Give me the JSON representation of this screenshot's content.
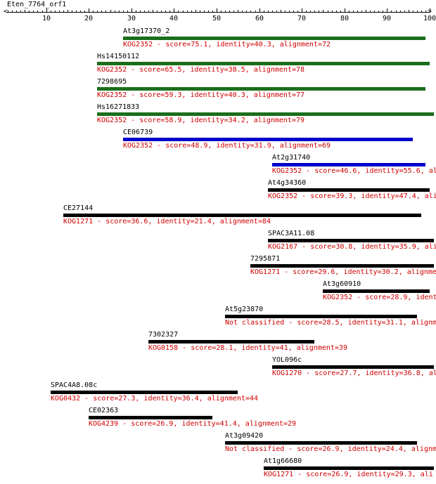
{
  "query": {
    "name": "Eten_7764_orf1",
    "axis_ticks": [
      "10",
      "20",
      "30",
      "40",
      "50",
      "60",
      "70",
      "80",
      "90",
      "100"
    ]
  },
  "colors": {
    "green": "#1a6e1a",
    "blue": "#0000cc",
    "black": "#000000",
    "text_red": "#d00000"
  },
  "hits": [
    {
      "name": "At3g17370_2",
      "description": "KOG2352 - score=75.1, identity=40.3, alignment=72",
      "start": 28,
      "end": 99,
      "color": "green"
    },
    {
      "name": "Hs14150112",
      "description": "KOG2352 - score=65.5, identity=38.5, alignment=78",
      "start": 22,
      "end": 100,
      "color": "green"
    },
    {
      "name": "7298695",
      "description": "KOG2352 - score=59.3, identity=40.3, alignment=77",
      "start": 22,
      "end": 99,
      "color": "green"
    },
    {
      "name": "Hs16271833",
      "description": "KOG2352 - score=58.9, identity=34.2, alignment=79",
      "start": 22,
      "end": 101,
      "color": "green"
    },
    {
      "name": "CE06739",
      "description": "KOG2352 - score=48.9, identity=31.9, alignment=69",
      "start": 28,
      "end": 96,
      "color": "blue"
    },
    {
      "name": "At2g31740",
      "description": "KOG2352 - score=46.6, identity=55.6, ali",
      "start": 63,
      "end": 99,
      "color": "blue"
    },
    {
      "name": "At4g34360",
      "description": "KOG2352 - score=39.3, identity=47.4, ali",
      "start": 62,
      "end": 100,
      "color": "black"
    },
    {
      "name": "CE27144",
      "description": "KOG1271 - score=36.6, identity=21.4, alignment=84",
      "start": 14,
      "end": 98,
      "color": "black"
    },
    {
      "name": "SPAC3A11.08",
      "description": "KOG2167 - score=30.8, identity=35.9, ali",
      "start": 62,
      "end": 101,
      "color": "black"
    },
    {
      "name": "7295871",
      "description": "KOG1271 - score=29.6, identity=30.2, alignmen",
      "start": 58,
      "end": 101,
      "color": "black"
    },
    {
      "name": "At3g60910",
      "description": "KOG2352 - score=28.9, identi",
      "start": 75,
      "end": 100,
      "color": "black"
    },
    {
      "name": "At5g23870",
      "description": "Not classified - score=28.5, identity=31.1, alignmen",
      "start": 52,
      "end": 97,
      "color": "black"
    },
    {
      "name": "7302327",
      "description": "KOG0158 - score=28.1, identity=41, alignment=39",
      "start": 34,
      "end": 73,
      "color": "black"
    },
    {
      "name": "YOL096c",
      "description": "KOG1270 - score=27.7, identity=36.8, ali",
      "start": 63,
      "end": 101,
      "color": "black"
    },
    {
      "name": "SPAC4A8.08c",
      "description": "KOG0432 - score=27.3, identity=36.4, alignment=44",
      "start": 11,
      "end": 55,
      "color": "black"
    },
    {
      "name": "CE02363",
      "description": "KOG4239 - score=26.9, identity=41.4, alignment=29",
      "start": 20,
      "end": 49,
      "color": "black"
    },
    {
      "name": "At3g09420",
      "description": "Not classified - score=26.9, identity=24.4, alignmen",
      "start": 52,
      "end": 97,
      "color": "black"
    },
    {
      "name": "At1g66680",
      "description": "KOG1271 - score=26.9, identity=29.3, ali",
      "start": 61,
      "end": 101,
      "color": "black"
    }
  ]
}
